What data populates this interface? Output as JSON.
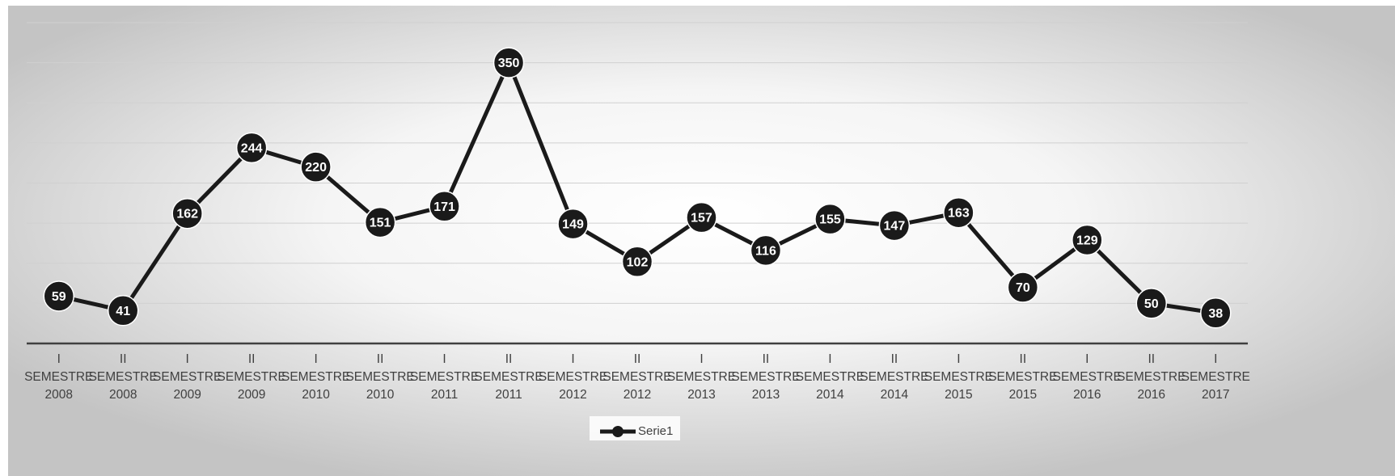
{
  "chart_data": {
    "type": "line",
    "title": "",
    "xlabel": "",
    "ylabel": "",
    "ylim": [
      0,
      400
    ],
    "grid": true,
    "legend_position": "bottom",
    "categories": [
      [
        "I",
        "SEMESTRE",
        "2008"
      ],
      [
        "II",
        "SEMESTRE",
        "2008"
      ],
      [
        "I",
        "SEMESTRE",
        "2009"
      ],
      [
        "II",
        "SEMESTRE",
        "2009"
      ],
      [
        "I",
        "SEMESTRE",
        "2010"
      ],
      [
        "II",
        "SEMESTRE",
        "2010"
      ],
      [
        "I",
        "SEMESTRE",
        "2011"
      ],
      [
        "II",
        "SEMESTRE",
        "2011"
      ],
      [
        "I",
        "SEMESTRE",
        "2012"
      ],
      [
        "II",
        "SEMESTRE",
        "2012"
      ],
      [
        "I",
        "SEMESTRE",
        "2013"
      ],
      [
        "II",
        "SEMESTRE",
        "2013"
      ],
      [
        "I",
        "SEMESTRE",
        "2014"
      ],
      [
        "II",
        "SEMESTRE",
        "2014"
      ],
      [
        "I",
        "SEMESTRE",
        "2015"
      ],
      [
        "II",
        "SEMESTRE",
        "2015"
      ],
      [
        "I",
        "SEMESTRE",
        "2016"
      ],
      [
        "II",
        "SEMESTRE",
        "2016"
      ],
      [
        "I",
        "SEMESTRE",
        "2017"
      ]
    ],
    "series": [
      {
        "name": "Serie1",
        "color": "#1a1a1a",
        "values": [
          59,
          41,
          162,
          244,
          220,
          151,
          171,
          350,
          149,
          102,
          157,
          116,
          155,
          147,
          163,
          70,
          129,
          50,
          38
        ]
      }
    ]
  }
}
